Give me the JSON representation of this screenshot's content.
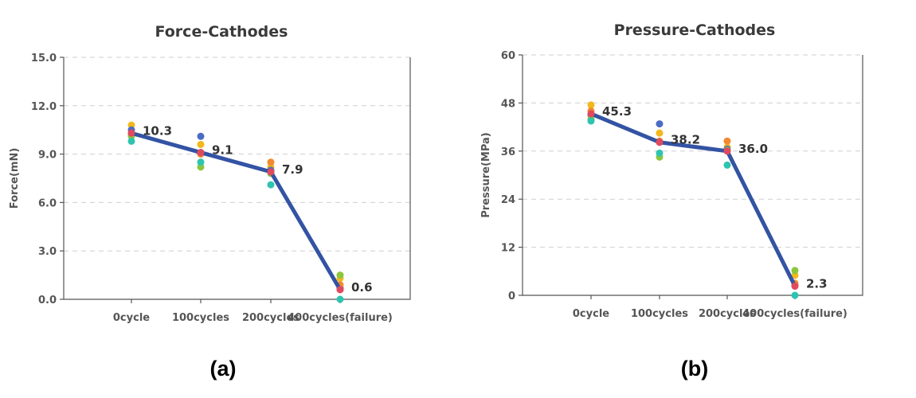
{
  "chart_data": [
    {
      "type": "line",
      "title": "Force-Cathodes",
      "ylabel": "Force(mN)",
      "xlabel": "",
      "panel_label": "(a)",
      "categories": [
        "0cycle",
        "100cycles",
        "200cycles",
        "400cycles(failure)"
      ],
      "ylim": [
        0,
        15
      ],
      "yticks": [
        "0.0",
        "3.0",
        "6.0",
        "9.0",
        "12.0",
        "15.0"
      ],
      "ytick_values": [
        0,
        3,
        6,
        9,
        12,
        15
      ],
      "grid": true,
      "mean": {
        "values": [
          10.3,
          9.1,
          7.9,
          0.6
        ],
        "labels": [
          "10.3",
          "9.1",
          "7.9",
          "0.6"
        ],
        "color": "#3353a3"
      },
      "samples": [
        {
          "color": "#f2b81c",
          "values": [
            10.8,
            9.6,
            8.2,
            1.3
          ]
        },
        {
          "color": "#4b6cc4",
          "values": [
            10.5,
            10.1,
            8.0,
            0.7
          ]
        },
        {
          "color": "#f28a2e",
          "values": [
            10.2,
            9.0,
            8.5,
            0.9
          ]
        },
        {
          "color": "#8cc63e",
          "values": [
            10.1,
            8.2,
            7.8,
            1.5
          ]
        },
        {
          "color": "#2ec4b0",
          "values": [
            9.8,
            8.5,
            7.1,
            0.0
          ]
        },
        {
          "color": "#e04a5e",
          "values": [
            10.3,
            9.1,
            7.9,
            0.6
          ]
        }
      ]
    },
    {
      "type": "line",
      "title": "Pressure-Cathodes",
      "ylabel": "Pressure(MPa)",
      "xlabel": "",
      "panel_label": "(b)",
      "categories": [
        "0cycle",
        "100cycles",
        "200cycles",
        "400cycles(failure)"
      ],
      "ylim": [
        0,
        60
      ],
      "yticks": [
        "0",
        "12",
        "24",
        "36",
        "48",
        "60"
      ],
      "ytick_values": [
        0,
        12,
        24,
        36,
        48,
        60
      ],
      "grid": true,
      "mean": {
        "values": [
          45.3,
          38.2,
          36.0,
          2.3
        ],
        "labels": [
          "45.3",
          "38.2",
          "36.0",
          "2.3"
        ],
        "color": "#3353a3"
      },
      "samples": [
        {
          "color": "#f2b81c",
          "values": [
            47.5,
            40.5,
            37.0,
            5.0
          ]
        },
        {
          "color": "#4b6cc4",
          "values": [
            45.0,
            42.8,
            36.5,
            2.5
          ]
        },
        {
          "color": "#f28a2e",
          "values": [
            46.0,
            38.5,
            38.5,
            3.0
          ]
        },
        {
          "color": "#8cc63e",
          "values": [
            44.0,
            34.5,
            36.2,
            6.2
          ]
        },
        {
          "color": "#2ec4b0",
          "values": [
            43.5,
            35.5,
            32.5,
            0.0
          ]
        },
        {
          "color": "#e04a5e",
          "values": [
            45.3,
            38.2,
            36.0,
            2.3
          ]
        }
      ]
    }
  ]
}
